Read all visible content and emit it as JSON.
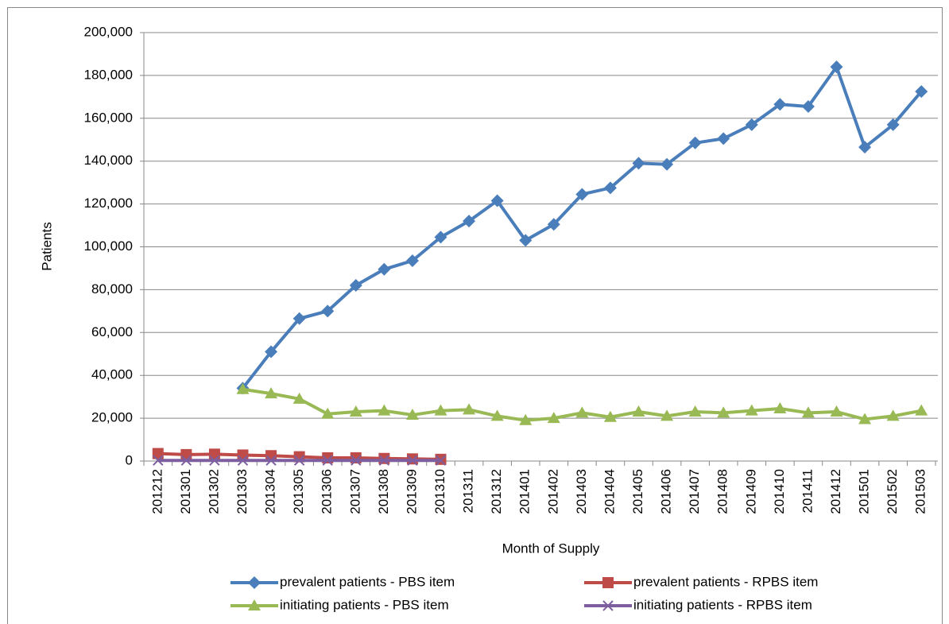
{
  "chart_data": {
    "type": "line",
    "x_label": "Month of Supply",
    "y_label": "Patients",
    "categories": [
      "201212",
      "201301",
      "201302",
      "201303",
      "201304",
      "201305",
      "201306",
      "201307",
      "201308",
      "201309",
      "201310",
      "201311",
      "201312",
      "201401",
      "201402",
      "201403",
      "201404",
      "201405",
      "201406",
      "201407",
      "201408",
      "201409",
      "201410",
      "201411",
      "201412",
      "201501",
      "201502",
      "201503"
    ],
    "series": [
      {
        "name": "prevalent patients - PBS item",
        "color": "#4a7ebb",
        "marker": "diamond",
        "values": [
          null,
          null,
          null,
          34000,
          51000,
          66500,
          70000,
          82000,
          89500,
          93500,
          104500,
          112000,
          121500,
          103000,
          110500,
          124500,
          127500,
          139000,
          138500,
          148500,
          150500,
          157000,
          166500,
          165500,
          184000,
          146500,
          157000,
          172500
        ]
      },
      {
        "name": "prevalent patients - RPBS item",
        "color": "#be4b48",
        "marker": "square",
        "values": [
          3500,
          3000,
          3200,
          2800,
          2500,
          2000,
          1500,
          1500,
          1200,
          1000,
          800,
          null,
          null,
          null,
          null,
          null,
          null,
          null,
          null,
          null,
          null,
          null,
          null,
          null,
          null,
          null,
          null,
          null
        ]
      },
      {
        "name": "initiating patients - PBS item",
        "color": "#98b954",
        "marker": "triangle",
        "values": [
          null,
          null,
          null,
          33500,
          31500,
          29000,
          22000,
          23000,
          23500,
          21500,
          23500,
          24000,
          21000,
          19000,
          20000,
          22500,
          20500,
          23000,
          21000,
          23000,
          22500,
          23500,
          24500,
          22500,
          23000,
          19500,
          21000,
          23500
        ]
      },
      {
        "name": "initiating patients - RPBS item",
        "color": "#7d5fa0",
        "marker": "x",
        "values": [
          300,
          300,
          300,
          300,
          300,
          300,
          300,
          300,
          300,
          300,
          300,
          null,
          null,
          null,
          null,
          null,
          null,
          null,
          null,
          null,
          null,
          null,
          null,
          null,
          null,
          null,
          null,
          null
        ]
      }
    ],
    "ylim": [
      0,
      200000
    ],
    "yticks": [
      {
        "value": 0,
        "label": "0"
      },
      {
        "value": 20000,
        "label": "20,000"
      },
      {
        "value": 40000,
        "label": "40,000"
      },
      {
        "value": 60000,
        "label": "60,000"
      },
      {
        "value": 80000,
        "label": "80,000"
      },
      {
        "value": 100000,
        "label": "100,000"
      },
      {
        "value": 120000,
        "label": "120,000"
      },
      {
        "value": 140000,
        "label": "140,000"
      },
      {
        "value": 160000,
        "label": "160,000"
      },
      {
        "value": 180000,
        "label": "180,000"
      },
      {
        "value": 200000,
        "label": "200,000"
      }
    ],
    "grid": true,
    "legend": "bottom"
  }
}
